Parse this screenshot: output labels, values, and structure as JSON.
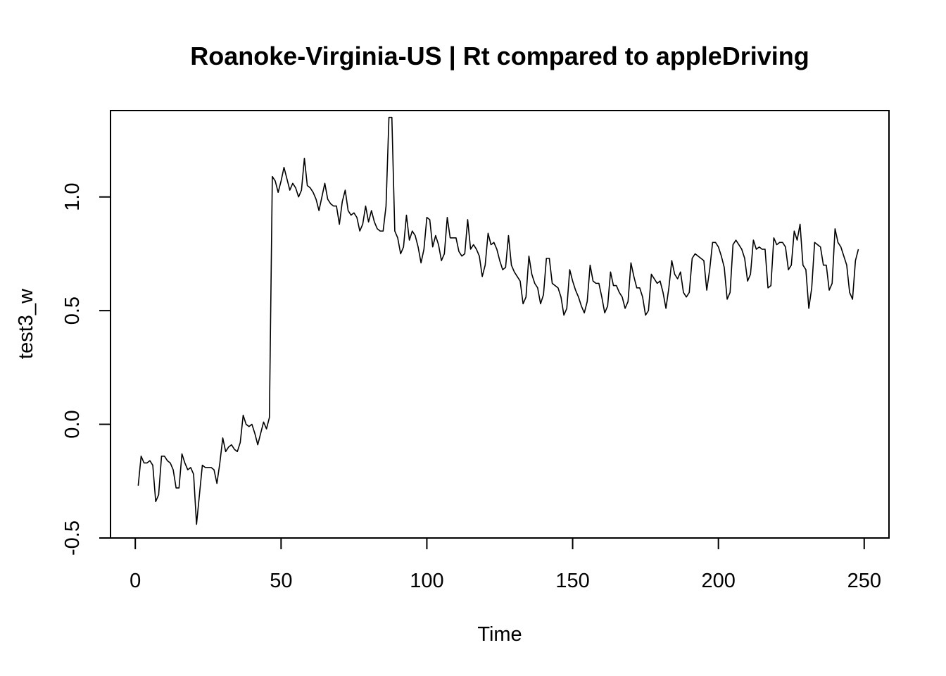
{
  "chart_data": {
    "type": "line",
    "title": "Roanoke-Virginia-US | Rt compared to appleDriving",
    "xlabel": "Time",
    "ylabel": "test3_w",
    "xlim": [
      -8.5,
      258.5
    ],
    "ylim": [
      -0.5,
      1.38
    ],
    "x_ticks": [
      {
        "value": 0,
        "label": "0"
      },
      {
        "value": 50,
        "label": "50"
      },
      {
        "value": 100,
        "label": "100"
      },
      {
        "value": 150,
        "label": "150"
      },
      {
        "value": 200,
        "label": "200"
      },
      {
        "value": 250,
        "label": "250"
      }
    ],
    "y_ticks": [
      {
        "value": -0.5,
        "label": "-0.5"
      },
      {
        "value": 0.0,
        "label": "0.0"
      },
      {
        "value": 0.5,
        "label": "0.5"
      },
      {
        "value": 1.0,
        "label": "1.0"
      }
    ],
    "grid": false,
    "line_color": "#000000",
    "series": [
      {
        "x_start": 1,
        "values": [
          -0.27,
          -0.14,
          -0.17,
          -0.17,
          -0.16,
          -0.18,
          -0.34,
          -0.31,
          -0.14,
          -0.14,
          -0.16,
          -0.17,
          -0.2,
          -0.28,
          -0.28,
          -0.13,
          -0.17,
          -0.2,
          -0.19,
          -0.22,
          -0.44,
          -0.31,
          -0.18,
          -0.19,
          -0.19,
          -0.19,
          -0.2,
          -0.26,
          -0.17,
          -0.06,
          -0.12,
          -0.1,
          -0.09,
          -0.11,
          -0.12,
          -0.08,
          0.04,
          0.0,
          -0.01,
          0.0,
          -0.04,
          -0.09,
          -0.04,
          0.01,
          -0.02,
          0.03,
          1.09,
          1.07,
          1.02,
          1.07,
          1.13,
          1.08,
          1.03,
          1.06,
          1.04,
          1.0,
          1.03,
          1.17,
          1.05,
          1.04,
          1.02,
          0.99,
          0.94,
          1.0,
          1.06,
          0.99,
          0.97,
          0.96,
          0.96,
          0.88,
          0.98,
          1.03,
          0.94,
          0.92,
          0.93,
          0.91,
          0.85,
          0.88,
          0.96,
          0.89,
          0.94,
          0.89,
          0.86,
          0.85,
          0.85,
          0.96,
          1.35,
          1.35,
          0.85,
          0.82,
          0.75,
          0.78,
          0.92,
          0.81,
          0.85,
          0.83,
          0.78,
          0.71,
          0.77,
          0.91,
          0.9,
          0.78,
          0.83,
          0.79,
          0.72,
          0.75,
          0.91,
          0.82,
          0.82,
          0.82,
          0.76,
          0.74,
          0.75,
          0.9,
          0.77,
          0.79,
          0.77,
          0.74,
          0.65,
          0.7,
          0.84,
          0.79,
          0.8,
          0.77,
          0.72,
          0.68,
          0.69,
          0.83,
          0.7,
          0.67,
          0.65,
          0.63,
          0.53,
          0.56,
          0.74,
          0.66,
          0.62,
          0.6,
          0.53,
          0.57,
          0.73,
          0.73,
          0.62,
          0.61,
          0.6,
          0.56,
          0.48,
          0.51,
          0.68,
          0.63,
          0.59,
          0.56,
          0.52,
          0.49,
          0.54,
          0.7,
          0.63,
          0.62,
          0.62,
          0.56,
          0.49,
          0.52,
          0.67,
          0.61,
          0.61,
          0.58,
          0.56,
          0.51,
          0.54,
          0.71,
          0.65,
          0.6,
          0.6,
          0.56,
          0.48,
          0.5,
          0.66,
          0.64,
          0.62,
          0.63,
          0.58,
          0.51,
          0.6,
          0.72,
          0.66,
          0.64,
          0.67,
          0.58,
          0.56,
          0.58,
          0.73,
          0.75,
          0.74,
          0.73,
          0.72,
          0.59,
          0.68,
          0.8,
          0.8,
          0.78,
          0.74,
          0.69,
          0.55,
          0.58,
          0.79,
          0.81,
          0.79,
          0.77,
          0.73,
          0.63,
          0.66,
          0.81,
          0.77,
          0.78,
          0.77,
          0.77,
          0.6,
          0.61,
          0.82,
          0.79,
          0.8,
          0.8,
          0.78,
          0.68,
          0.7,
          0.85,
          0.81,
          0.88,
          0.7,
          0.68,
          0.51,
          0.6,
          0.8,
          0.79,
          0.78,
          0.7,
          0.7,
          0.59,
          0.62,
          0.86,
          0.8,
          0.78,
          0.74,
          0.7,
          0.58,
          0.55,
          0.72,
          0.77
        ]
      }
    ]
  }
}
